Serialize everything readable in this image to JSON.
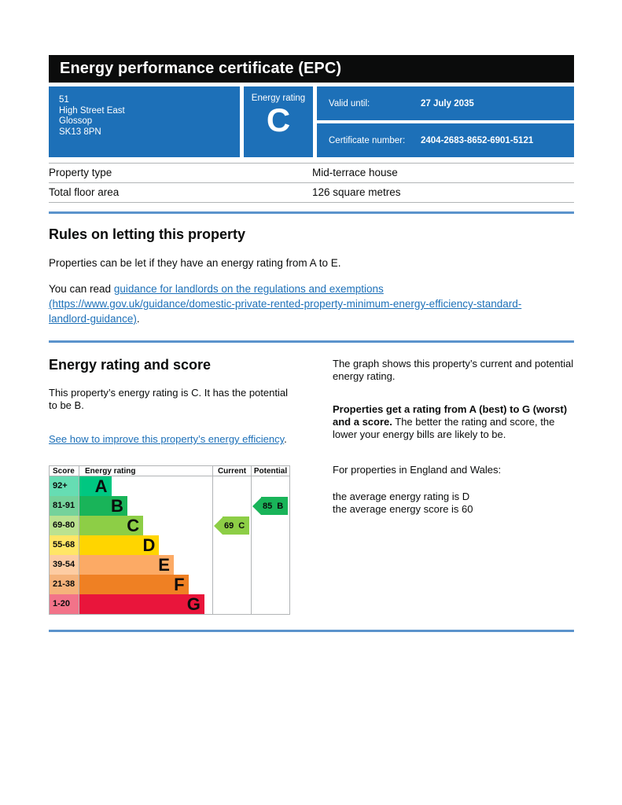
{
  "header": {
    "title": "Energy performance certificate (EPC)",
    "address_lines": [
      "51",
      "High Street East",
      "Glossop",
      "SK13 8PN"
    ],
    "energy_rating_label": "Energy rating",
    "energy_rating_value": "C",
    "valid_until_label": "Valid until:",
    "valid_until_value": "27 July 2035",
    "certificate_number_label": "Certificate number:",
    "certificate_number_value": "2404-2683-8652-6901-5121"
  },
  "property_summary": {
    "rows": [
      {
        "label": "Property type",
        "value": "Mid-terrace house"
      },
      {
        "label": "Total floor area",
        "value": "126 square metres"
      }
    ]
  },
  "rules_section": {
    "heading": "Rules on letting this property",
    "paragraph1": "Properties can be let if they have an energy rating from A to E.",
    "paragraph2_prefix": "You can read ",
    "paragraph2_link": "guidance for landlords on the regulations and exemptions (https://www.gov.uk/guidance/domestic-private-rented-property-minimum-energy-efficiency-standard-landlord-guidance)",
    "paragraph2_suffix": "."
  },
  "rating_section": {
    "heading": "Energy rating and score",
    "summary_text": "This property’s energy rating is C. It has the potential to be B.",
    "improve_link": "See how to improve this property’s energy efficiency",
    "improve_link_suffix": ".",
    "graph_intro": "The graph shows this property’s current and potential energy rating.",
    "explain_bold": "Properties get a rating from A (best) to G (worst) and a score.",
    "explain_rest": " The better the rating and score, the lower your energy bills are likely to be.",
    "for_properties": "For properties in England and Wales:",
    "average_lines": [
      "the average energy rating is D",
      "the average energy score is 60"
    ]
  },
  "chart_data": {
    "type": "table",
    "title": "Energy rating and score graph",
    "columns": [
      "Score",
      "Energy rating",
      "Current",
      "Potential"
    ],
    "bands": [
      {
        "score": "92+",
        "letter": "A",
        "color": "#00c781",
        "width_pct": 24
      },
      {
        "score": "81-91",
        "letter": "B",
        "color": "#19b459",
        "width_pct": 36
      },
      {
        "score": "69-80",
        "letter": "C",
        "color": "#8dce46",
        "width_pct": 48
      },
      {
        "score": "55-68",
        "letter": "D",
        "color": "#ffd500",
        "width_pct": 60
      },
      {
        "score": "39-54",
        "letter": "E",
        "color": "#fcaa65",
        "width_pct": 71
      },
      {
        "score": "21-38",
        "letter": "F",
        "color": "#ef8023",
        "width_pct": 82
      },
      {
        "score": "1-20",
        "letter": "G",
        "color": "#e9153b",
        "width_pct": 94
      }
    ],
    "current": {
      "score": "69",
      "letter": "C",
      "row_index": 2,
      "color": "#8dce46"
    },
    "potential": {
      "score": "85",
      "letter": "B",
      "row_index": 1,
      "color": "#19b459"
    }
  },
  "colors": {
    "govuk_blue": "#1d70b8",
    "link_blue": "#1d70b8",
    "rule_blue": "#5b93cc",
    "border_gray": "#b1b4b6",
    "ink": "#0b0c0c"
  }
}
